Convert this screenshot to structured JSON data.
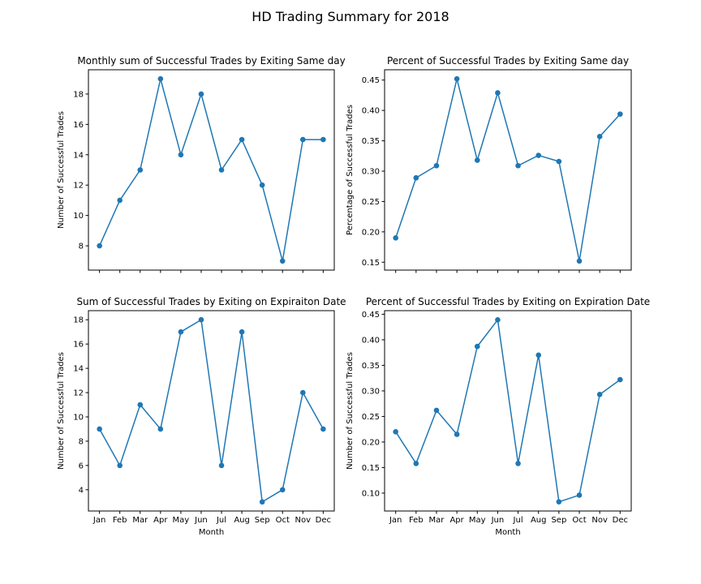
{
  "figure": {
    "title": "HD Trading Summary for 2018"
  },
  "chart_data": [
    {
      "type": "line",
      "title": "Monthly sum of Successful Trades by Exiting Same day",
      "xlabel": "",
      "ylabel": "Number of Successful Trades",
      "categories": [
        "Jan",
        "Feb",
        "Mar",
        "Apr",
        "May",
        "Jun",
        "Jul",
        "Aug",
        "Sep",
        "Oct",
        "Nov",
        "Dec"
      ],
      "show_xticklabels": false,
      "values": [
        8,
        11,
        13,
        19,
        14,
        18,
        13,
        15,
        12,
        7,
        15,
        15
      ],
      "ylim": [
        6.4,
        19.6
      ],
      "yticks": [
        8,
        10,
        12,
        14,
        16,
        18
      ],
      "ytick_labels": [
        "8",
        "10",
        "12",
        "14",
        "16",
        "18"
      ],
      "grid": false,
      "color": "#1f77b4"
    },
    {
      "type": "line",
      "title": "Percent of Successful Trades by Exiting Same day",
      "xlabel": "",
      "ylabel": "Percentage of Successful Trades",
      "categories": [
        "Jan",
        "Feb",
        "Mar",
        "Apr",
        "May",
        "Jun",
        "Jul",
        "Aug",
        "Sep",
        "Oct",
        "Nov",
        "Dec"
      ],
      "show_xticklabels": false,
      "values": [
        0.19,
        0.289,
        0.309,
        0.452,
        0.318,
        0.429,
        0.309,
        0.326,
        0.316,
        0.152,
        0.357,
        0.394
      ],
      "ylim": [
        0.137,
        0.467
      ],
      "yticks": [
        0.15,
        0.2,
        0.25,
        0.3,
        0.35,
        0.4,
        0.45
      ],
      "ytick_labels": [
        "0.15",
        "0.20",
        "0.25",
        "0.30",
        "0.35",
        "0.40",
        "0.45"
      ],
      "grid": false,
      "color": "#1f77b4"
    },
    {
      "type": "line",
      "title": "Sum of Successful Trades by Exiting on Expiraiton Date",
      "xlabel": "Month",
      "ylabel": "Number of Successful Trades",
      "categories": [
        "Jan",
        "Feb",
        "Mar",
        "Apr",
        "May",
        "Jun",
        "Jul",
        "Aug",
        "Sep",
        "Oct",
        "Nov",
        "Dec"
      ],
      "show_xticklabels": true,
      "values": [
        9,
        6,
        11,
        9,
        17,
        18,
        6,
        17,
        3,
        4,
        12,
        9
      ],
      "ylim": [
        2.25,
        18.75
      ],
      "yticks": [
        4,
        6,
        8,
        10,
        12,
        14,
        16,
        18
      ],
      "ytick_labels": [
        "4",
        "6",
        "8",
        "10",
        "12",
        "14",
        "16",
        "18"
      ],
      "grid": false,
      "color": "#1f77b4"
    },
    {
      "type": "line",
      "title": "Percent of Successful Trades by Exiting on Expiration Date",
      "xlabel": "Month",
      "ylabel": "Number of Successful Trades",
      "categories": [
        "Jan",
        "Feb",
        "Mar",
        "Apr",
        "May",
        "Jun",
        "Jul",
        "Aug",
        "Sep",
        "Oct",
        "Nov",
        "Dec"
      ],
      "show_xticklabels": true,
      "values": [
        0.22,
        0.158,
        0.262,
        0.215,
        0.387,
        0.439,
        0.158,
        0.37,
        0.083,
        0.096,
        0.293,
        0.322
      ],
      "ylim": [
        0.065,
        0.457
      ],
      "yticks": [
        0.1,
        0.15,
        0.2,
        0.25,
        0.3,
        0.35,
        0.4,
        0.45
      ],
      "ytick_labels": [
        "0.10",
        "0.15",
        "0.20",
        "0.25",
        "0.30",
        "0.35",
        "0.40",
        "0.45"
      ],
      "grid": false,
      "color": "#1f77b4"
    }
  ]
}
